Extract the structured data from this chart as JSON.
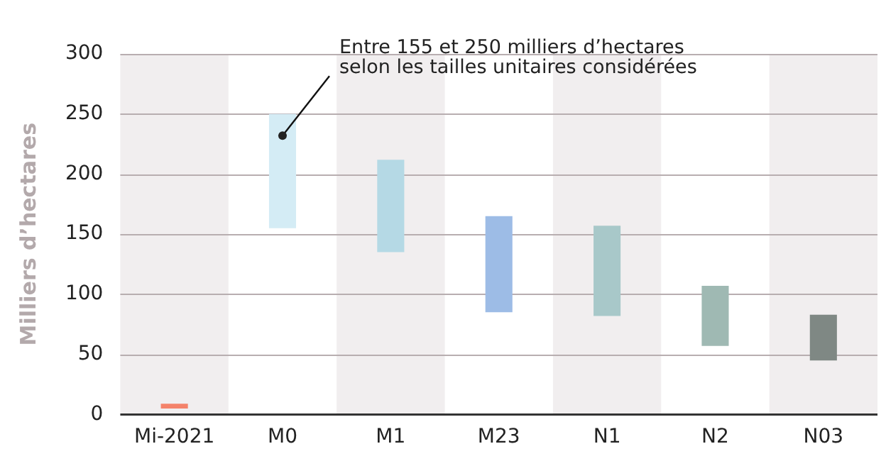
{
  "chart_data": {
    "type": "bar",
    "ylabel": "Milliers d’hectares",
    "categories": [
      "Mi-2021",
      "M0",
      "M1",
      "M23",
      "N1",
      "N2",
      "N03"
    ],
    "base": [
      5,
      155,
      135,
      85,
      82,
      57,
      45
    ],
    "values": [
      4,
      95,
      77,
      80,
      75,
      50,
      38
    ],
    "colors": [
      "#f4826a",
      "#d4ecf5",
      "#b5d9e5",
      "#9dbce6",
      "#a8c8c9",
      "#9fb9b3",
      "#7f8884"
    ],
    "ylim": [
      0,
      300
    ],
    "yticks": [
      0,
      50,
      100,
      150,
      200,
      250,
      300
    ],
    "grid": "y",
    "bands": [
      {
        "axis": "x",
        "from": "Mi-2021",
        "to": "Mi-2021",
        "color": "#f1eeef"
      },
      {
        "axis": "x",
        "from": "M1",
        "to": "M1",
        "color": "#f1eeef"
      },
      {
        "axis": "x",
        "from": "N1",
        "to": "N1",
        "color": "#f1eeef"
      },
      {
        "axis": "x",
        "from": "N03",
        "to": "N03",
        "color": "#f1eeef"
      }
    ],
    "annotations": [
      {
        "text": "Entre 155 et 250 milliers d’hectares\nselon les tailles unitaires considérées",
        "x": "M0",
        "y": 232
      }
    ]
  }
}
